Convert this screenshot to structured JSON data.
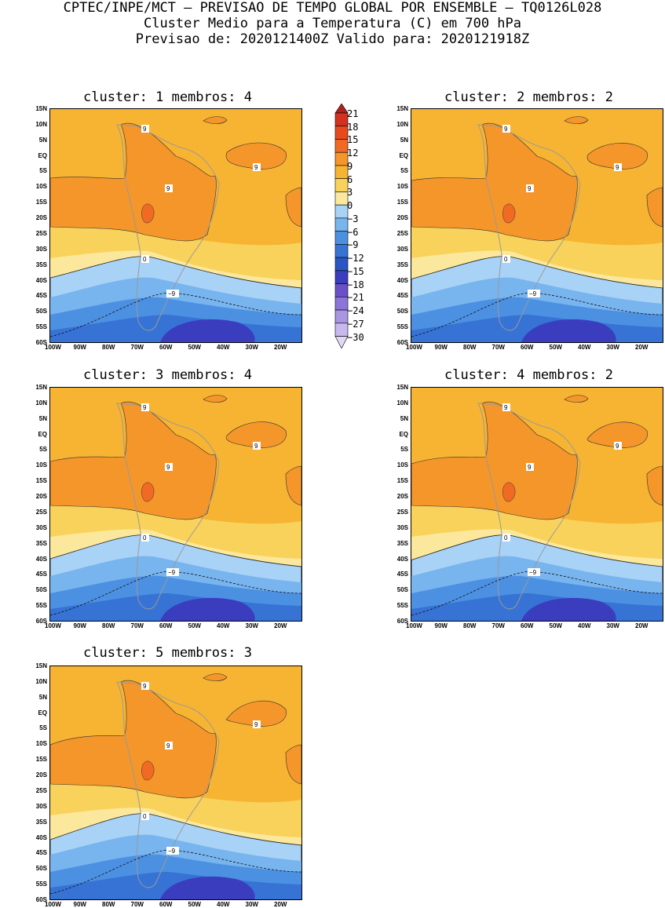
{
  "header": {
    "line1": "CPTEC/INPE/MCT — PREVISAO DE TEMPO GLOBAL POR ENSEMBLE — TQ0126L028",
    "line2": "Cluster Medio para a Temperatura (C) em 700 hPa",
    "line3": "Previsao de: 2020121400Z   Valido para: 2020121918Z"
  },
  "panels": [
    {
      "title": "cluster: 1   membros: 4"
    },
    {
      "title": "cluster: 2   membros: 2"
    },
    {
      "title": "cluster: 3   membros: 4"
    },
    {
      "title": "cluster: 4   membros: 2"
    },
    {
      "title": "cluster: 5   membros: 3"
    }
  ],
  "axes": {
    "lat_labels": [
      "15N",
      "10N",
      "5N",
      "EQ",
      "5S",
      "10S",
      "15S",
      "20S",
      "25S",
      "30S",
      "35S",
      "40S",
      "45S",
      "50S",
      "55S",
      "60S"
    ],
    "lon_labels": [
      "100W",
      "90W",
      "80W",
      "70W",
      "60W",
      "50W",
      "40W",
      "30W",
      "20W"
    ]
  },
  "contour_labels": {
    "warm": "9",
    "zero": "0",
    "cold": "−9"
  },
  "colorbar": {
    "levels": [
      "21",
      "18",
      "15",
      "12",
      "9",
      "6",
      "3",
      "0",
      "−3",
      "−6",
      "−9",
      "−12",
      "−15",
      "−18",
      "−21",
      "−24",
      "−27",
      "−30"
    ],
    "colors": [
      "#b0201c",
      "#d2321e",
      "#e84a1e",
      "#f06a24",
      "#f4962a",
      "#f6b432",
      "#f8d25a",
      "#fbe89c",
      "#a8d2f6",
      "#78b4ee",
      "#4c90e2",
      "#3673d4",
      "#2b55c4",
      "#3b3dbf",
      "#6a50c8",
      "#8c74d8",
      "#a896e2",
      "#c8b8ee",
      "#e2d8f6"
    ]
  }
}
